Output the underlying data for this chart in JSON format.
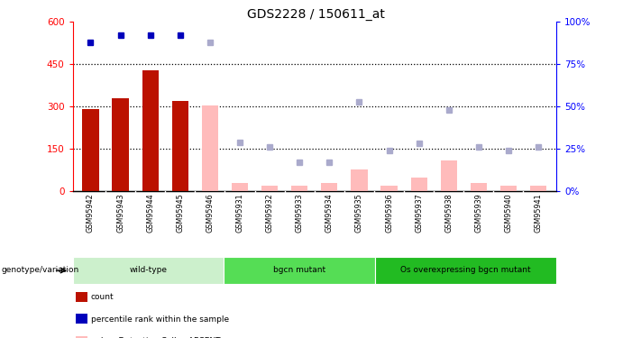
{
  "title": "GDS2228 / 150611_at",
  "samples": [
    "GSM95942",
    "GSM95943",
    "GSM95944",
    "GSM95945",
    "GSM95946",
    "GSM95931",
    "GSM95932",
    "GSM95933",
    "GSM95934",
    "GSM95935",
    "GSM95936",
    "GSM95937",
    "GSM95938",
    "GSM95939",
    "GSM95940",
    "GSM95941"
  ],
  "count_values": [
    290,
    330,
    430,
    320,
    null,
    null,
    null,
    null,
    null,
    null,
    null,
    null,
    null,
    null,
    null,
    null
  ],
  "count_absent_values": [
    null,
    null,
    null,
    null,
    305,
    28,
    18,
    18,
    28,
    78,
    18,
    48,
    108,
    28,
    18,
    18
  ],
  "percentile_present": [
    88,
    92,
    92,
    92,
    null,
    null,
    null,
    null,
    null,
    null,
    null,
    null,
    null,
    null,
    null,
    null
  ],
  "percentile_absent": [
    null,
    null,
    null,
    null,
    88,
    29,
    26,
    17,
    17,
    53,
    24,
    28,
    48,
    26,
    24,
    26
  ],
  "groups": [
    {
      "label": "wild-type",
      "start": 0,
      "end": 5
    },
    {
      "label": "bgcn mutant",
      "start": 5,
      "end": 10
    },
    {
      "label": "Os overexpressing bgcn mutant",
      "start": 10,
      "end": 16
    }
  ],
  "ylim_left": [
    0,
    600
  ],
  "yticks_left": [
    0,
    150,
    300,
    450,
    600
  ],
  "yticks_right": [
    0,
    25,
    50,
    75,
    100
  ],
  "bar_color_present": "#bb1100",
  "bar_color_absent": "#ffbbbb",
  "dot_color_present": "#0000bb",
  "dot_color_absent": "#aaaacc",
  "group_colors": [
    "#ccf0cc",
    "#55dd55",
    "#22bb22"
  ],
  "sample_bg_color": "#d4d4d4",
  "genotype_label": "genotype/variation"
}
